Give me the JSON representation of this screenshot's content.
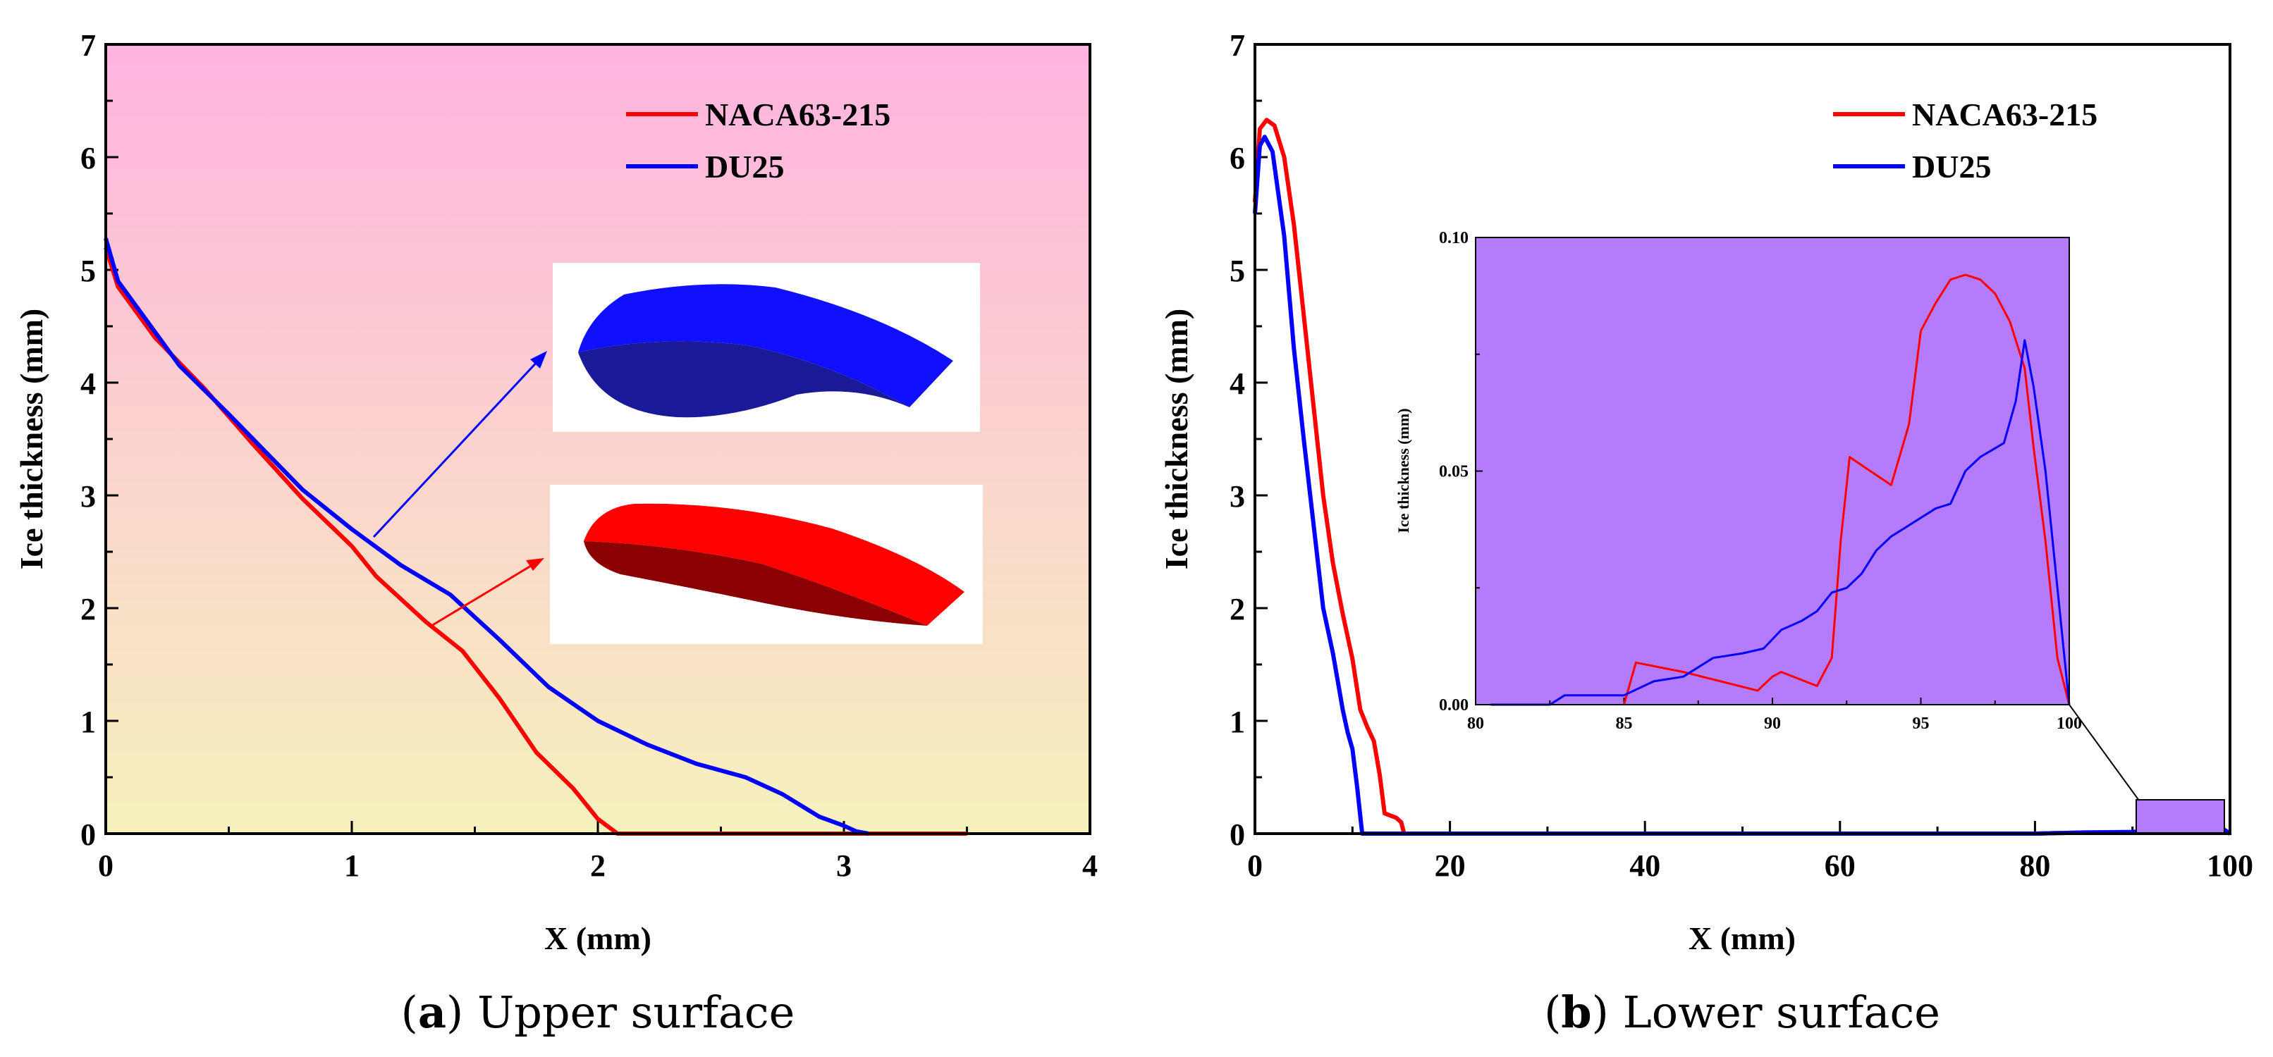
{
  "colors": {
    "red": "#ff0000",
    "blue": "#0000ff",
    "inset_bg": "#b57bfd",
    "bg_top": "#ffb3df",
    "bg_bottom": "#f6f1bd"
  },
  "chart_data": [
    {
      "type": "line",
      "caption_label": "a",
      "caption_text": " Upper surface",
      "xlabel": "X (mm)",
      "ylabel": "Ice thickness (mm)",
      "xlim": [
        0,
        4
      ],
      "ylim": [
        0,
        7
      ],
      "xticks": [
        "0",
        "1",
        "2",
        "3",
        "4"
      ],
      "yticks": [
        "0",
        "1",
        "2",
        "3",
        "4",
        "5",
        "6",
        "7"
      ],
      "legend_position": "top-right",
      "series": [
        {
          "name": "NACA63-215",
          "color": "#ff0000",
          "x": [
            0,
            0.05,
            0.2,
            0.4,
            0.6,
            0.8,
            1.0,
            1.1,
            1.3,
            1.45,
            1.6,
            1.75,
            1.9,
            2.0,
            2.08,
            2.5,
            3.0,
            3.5
          ],
          "y": [
            5.2,
            4.85,
            4.4,
            3.95,
            3.45,
            2.97,
            2.55,
            2.28,
            1.88,
            1.62,
            1.2,
            0.72,
            0.4,
            0.13,
            0.0,
            0.0,
            0.0,
            0.0
          ]
        },
        {
          "name": "DU25",
          "color": "#0000ff",
          "x": [
            0,
            0.05,
            0.3,
            0.5,
            0.8,
            1.0,
            1.2,
            1.4,
            1.6,
            1.8,
            2.0,
            2.2,
            2.4,
            2.6,
            2.75,
            2.9,
            3.0,
            3.05,
            3.1
          ],
          "y": [
            5.28,
            4.9,
            4.15,
            3.72,
            3.05,
            2.7,
            2.38,
            2.12,
            1.72,
            1.3,
            1.0,
            0.79,
            0.62,
            0.5,
            0.35,
            0.15,
            0.07,
            0.02,
            0.0
          ]
        }
      ]
    },
    {
      "type": "line",
      "caption_label": "b",
      "caption_text": " Lower surface",
      "xlabel": "X (mm)",
      "ylabel": "Ice thickness (mm)",
      "xlim": [
        0,
        100
      ],
      "ylim": [
        0,
        7
      ],
      "xticks": [
        "0",
        "20",
        "40",
        "60",
        "80",
        "100"
      ],
      "yticks": [
        "0",
        "1",
        "2",
        "3",
        "4",
        "5",
        "6",
        "7"
      ],
      "legend_position": "top-right",
      "series": [
        {
          "name": "NACA63-215",
          "color": "#ff0000",
          "x": [
            0,
            0.5,
            1.2,
            2,
            3,
            4,
            5,
            6,
            7,
            8,
            9,
            10,
            10.8,
            11.5,
            12.2,
            12.8,
            13.3,
            14.5,
            15,
            15.3,
            20,
            40,
            60,
            80,
            85,
            90,
            92,
            95,
            97,
            98.5,
            99.5,
            100
          ],
          "y": [
            5.6,
            6.25,
            6.33,
            6.28,
            6.0,
            5.4,
            4.6,
            3.8,
            3.0,
            2.4,
            1.95,
            1.55,
            1.1,
            0.95,
            0.82,
            0.52,
            0.18,
            0.14,
            0.1,
            0.0,
            0.0,
            0.0,
            0.0,
            0.0,
            0.01,
            0.01,
            0.05,
            0.08,
            0.09,
            0.07,
            0.02,
            0.0
          ]
        },
        {
          "name": "DU25",
          "color": "#0000ff",
          "x": [
            0,
            0.5,
            1,
            1.8,
            3,
            4,
            5,
            6,
            7,
            8,
            9,
            9.5,
            10,
            10.5,
            11,
            20,
            40,
            60,
            80,
            85,
            90,
            95,
            98.5,
            99.5,
            100
          ],
          "y": [
            5.5,
            6.1,
            6.18,
            6.05,
            5.3,
            4.3,
            3.5,
            2.75,
            2.0,
            1.6,
            1.1,
            0.9,
            0.75,
            0.4,
            0.0,
            0.0,
            0.0,
            0.0,
            0.0,
            0.01,
            0.015,
            0.04,
            0.078,
            0.03,
            0.0
          ]
        }
      ],
      "inset": {
        "ylabel": "Ice thickness (mm)",
        "xlim": [
          80,
          100
        ],
        "ylim": [
          0,
          0.1
        ],
        "xticks": [
          "80",
          "85",
          "90",
          "95",
          "100"
        ],
        "yticks": [
          "0.00",
          "0.05",
          "0.10"
        ],
        "series": [
          {
            "name": "NACA63-215",
            "color": "#ff0000",
            "x": [
              85,
              85.4,
              87,
              89.5,
              90,
              90.3,
              91.5,
              92,
              92.3,
              92.6,
              94,
              94.6,
              95,
              95.5,
              96,
              96.5,
              97,
              97.5,
              98,
              98.5,
              98.8,
              99.2,
              99.6,
              100
            ],
            "y": [
              0.0,
              0.009,
              0.007,
              0.003,
              0.006,
              0.007,
              0.004,
              0.01,
              0.035,
              0.053,
              0.047,
              0.06,
              0.08,
              0.086,
              0.091,
              0.092,
              0.091,
              0.088,
              0.082,
              0.072,
              0.055,
              0.035,
              0.01,
              0.0
            ]
          },
          {
            "name": "DU25",
            "color": "#0000ff",
            "x": [
              80.5,
              82.5,
              83,
              84.5,
              85,
              86,
              87,
              88,
              89,
              89.7,
              90.3,
              91,
              91.5,
              92,
              92.5,
              93,
              93.5,
              94,
              94.5,
              95,
              95.5,
              96,
              96.5,
              97,
              97.8,
              98.2,
              98.5,
              98.8,
              99.2,
              99.6,
              100
            ],
            "y": [
              0.0,
              0.0,
              0.002,
              0.002,
              0.002,
              0.005,
              0.006,
              0.01,
              0.011,
              0.012,
              0.016,
              0.018,
              0.02,
              0.024,
              0.025,
              0.028,
              0.033,
              0.036,
              0.038,
              0.04,
              0.042,
              0.043,
              0.05,
              0.053,
              0.056,
              0.065,
              0.078,
              0.068,
              0.05,
              0.025,
              0.0
            ]
          }
        ]
      }
    }
  ]
}
